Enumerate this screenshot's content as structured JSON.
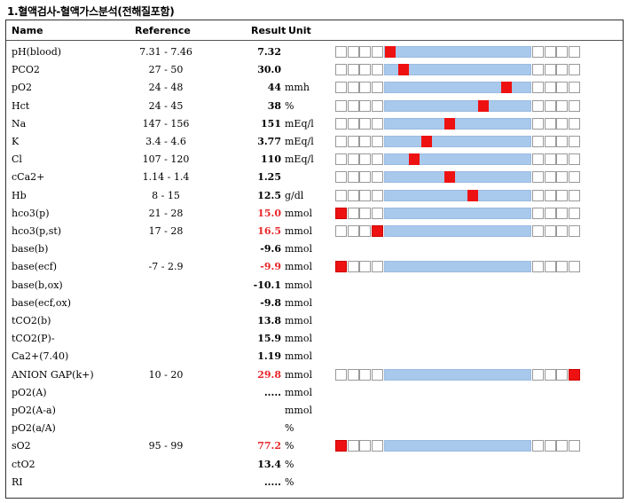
{
  "title": "1.혈액검사-혈액가스분석(전해질포함)",
  "headers": {
    "name": "Name",
    "reference": "Reference",
    "result": "Result",
    "unit": "Unit"
  },
  "colors": {
    "abnormal": "#e8262a",
    "marker": "#ee1111",
    "normal_range": "#a8c8ec"
  },
  "rows": [
    {
      "name": "pH(blood)",
      "ref": "7.31 - 7.46",
      "result": "7.32",
      "unit": "",
      "abnormal": false,
      "marker": {
        "zone": "mid",
        "pos": 0
      }
    },
    {
      "name": "PCO2",
      "ref": "27 - 50",
      "result": "30.0",
      "unit": "",
      "abnormal": false,
      "marker": {
        "zone": "mid",
        "pos": 0.1
      }
    },
    {
      "name": "pO2",
      "ref": "24 - 48",
      "result": "44",
      "unit": "mmh",
      "abnormal": false,
      "marker": {
        "zone": "mid",
        "pos": 0.86
      }
    },
    {
      "name": "Hct",
      "ref": "24 - 45",
      "result": "38",
      "unit": "%",
      "abnormal": false,
      "marker": {
        "zone": "mid",
        "pos": 0.69
      }
    },
    {
      "name": "Na",
      "ref": "147 - 156",
      "result": "151",
      "unit": "mEq/l",
      "abnormal": false,
      "marker": {
        "zone": "mid",
        "pos": 0.44
      }
    },
    {
      "name": "K",
      "ref": "3.4 - 4.6",
      "result": "3.77",
      "unit": "mEq/l",
      "abnormal": false,
      "marker": {
        "zone": "mid",
        "pos": 0.27
      }
    },
    {
      "name": "Cl",
      "ref": "107 - 120",
      "result": "110",
      "unit": "mEq/l",
      "abnormal": false,
      "marker": {
        "zone": "mid",
        "pos": 0.18
      }
    },
    {
      "name": "cCa2+",
      "ref": "1.14 - 1.4",
      "result": "1.25",
      "unit": "",
      "abnormal": false,
      "marker": {
        "zone": "mid",
        "pos": 0.44
      }
    },
    {
      "name": "Hb",
      "ref": "8 - 15",
      "result": "12.5",
      "unit": "g/dl",
      "abnormal": false,
      "marker": {
        "zone": "mid",
        "pos": 0.61
      }
    },
    {
      "name": "hco3(p)",
      "ref": "21 - 28",
      "result": "15.0",
      "unit": "mmol",
      "abnormal": true,
      "marker": {
        "zone": "left",
        "index": 0
      }
    },
    {
      "name": "hco3(p,st)",
      "ref": "17 - 28",
      "result": "16.5",
      "unit": "mmol",
      "abnormal": true,
      "marker": {
        "zone": "left",
        "index": 3
      }
    },
    {
      "name": "base(b)",
      "ref": "",
      "result": "-9.6",
      "unit": "mmol",
      "abnormal": false,
      "marker": null
    },
    {
      "name": "base(ecf)",
      "ref": "-7 - 2.9",
      "result": "-9.9",
      "unit": "mmol",
      "abnormal": true,
      "marker": {
        "zone": "left",
        "index": 0
      }
    },
    {
      "name": "base(b,ox)",
      "ref": "",
      "result": "-10.1",
      "unit": "mmol",
      "abnormal": false,
      "marker": null
    },
    {
      "name": "base(ecf,ox)",
      "ref": "",
      "result": "-9.8",
      "unit": "mmol",
      "abnormal": false,
      "marker": null
    },
    {
      "name": "tCO2(b)",
      "ref": "",
      "result": "13.8",
      "unit": "mmol",
      "abnormal": false,
      "marker": null
    },
    {
      "name": "tCO2(P)-",
      "ref": "",
      "result": "15.9",
      "unit": "mmol",
      "abnormal": false,
      "marker": null
    },
    {
      "name": "Ca2+(7.40)",
      "ref": "",
      "result": "1.19",
      "unit": "mmol",
      "abnormal": false,
      "marker": null
    },
    {
      "name": "ANION GAP(k+)",
      "ref": "10 - 20",
      "result": "29.8",
      "unit": "mmol",
      "abnormal": true,
      "marker": {
        "zone": "right",
        "index": 3
      }
    },
    {
      "name": "pO2(A)",
      "ref": "",
      "result": ".....",
      "unit": "mmol",
      "abnormal": false,
      "marker": null
    },
    {
      "name": "pO2(A-a)",
      "ref": "",
      "result": "",
      "unit": "mmol",
      "abnormal": false,
      "marker": null
    },
    {
      "name": "pO2(a/A)",
      "ref": "",
      "result": "",
      "unit": "%",
      "abnormal": false,
      "marker": null
    },
    {
      "name": "sO2",
      "ref": "95 - 99",
      "result": "77.2",
      "unit": "%",
      "abnormal": true,
      "marker": {
        "zone": "left",
        "index": 0
      }
    },
    {
      "name": "ctO2",
      "ref": "",
      "result": "13.4",
      "unit": "%",
      "abnormal": false,
      "marker": null
    },
    {
      "name": "RI",
      "ref": "",
      "result": ".....",
      "unit": "%",
      "abnormal": false,
      "marker": null
    }
  ]
}
